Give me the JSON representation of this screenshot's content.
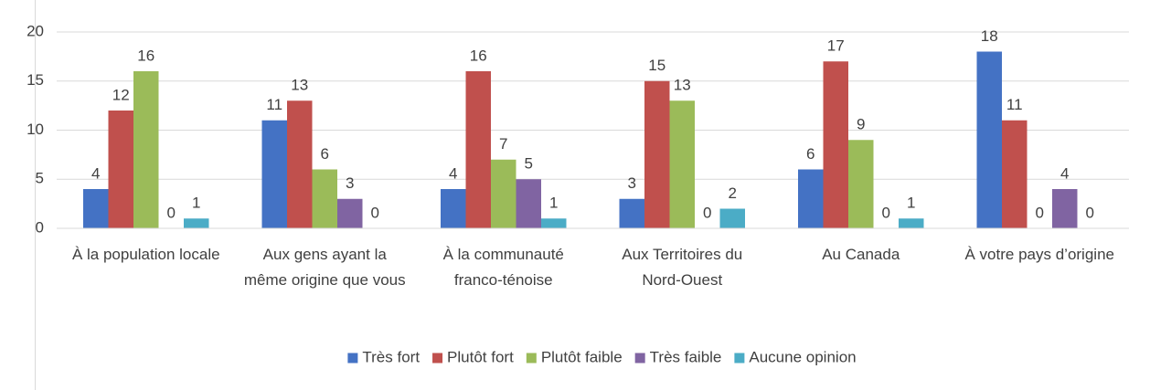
{
  "chart_data": {
    "type": "bar",
    "categories": [
      "À la population locale",
      "Aux gens ayant la même origine que vous",
      "À la communauté franco-ténoise",
      "Aux Territoires du Nord-Ouest",
      "Au Canada",
      "À votre pays d’origine"
    ],
    "series": [
      {
        "name": "Très fort",
        "color": "#4472c4",
        "values": [
          4,
          11,
          4,
          3,
          6,
          18
        ]
      },
      {
        "name": "Plutôt fort",
        "color": "#c0504d",
        "values": [
          12,
          13,
          16,
          15,
          17,
          11
        ]
      },
      {
        "name": "Plutôt faible",
        "color": "#9bbb59",
        "values": [
          16,
          6,
          7,
          13,
          9,
          0
        ]
      },
      {
        "name": "Très faible",
        "color": "#8064a2",
        "values": [
          0,
          3,
          5,
          0,
          0,
          4
        ]
      },
      {
        "name": "Aucune opinion",
        "color": "#4bacc6",
        "values": [
          1,
          0,
          1,
          2,
          1,
          0
        ]
      }
    ],
    "ylim": [
      0,
      20
    ],
    "yticks": [
      0,
      5,
      10,
      15,
      20
    ],
    "grid": true,
    "legend": "bottom"
  }
}
